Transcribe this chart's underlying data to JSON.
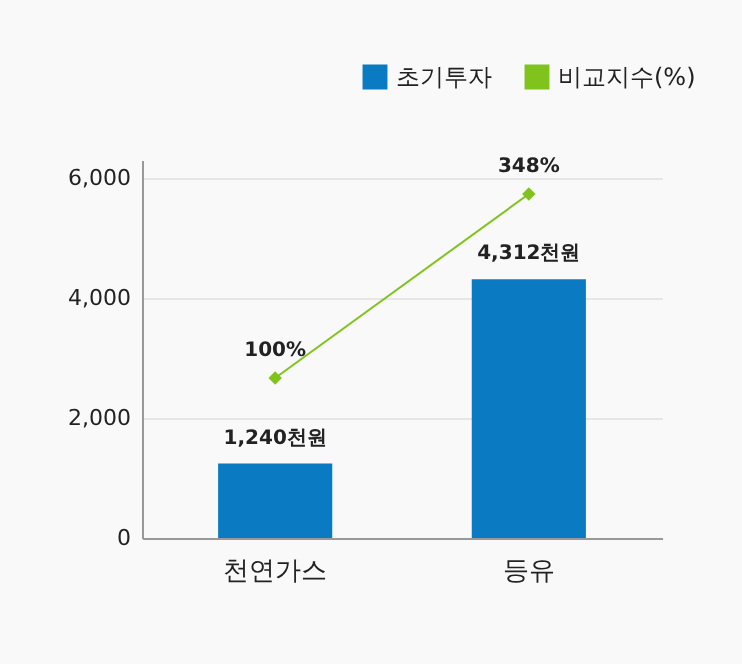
{
  "chart_data": {
    "type": "bar",
    "categories": [
      "천연가스",
      "등유"
    ],
    "series": [
      {
        "name": "초기투자",
        "color": "#0a7bc2",
        "values": [
          1240,
          4312
        ],
        "value_labels": [
          "1,240천원",
          "4,312천원"
        ]
      },
      {
        "name": "비교지수(%)",
        "type": "line",
        "axis": "y2",
        "color": "#7fc31c",
        "values": [
          100,
          348
        ],
        "value_labels": [
          "100%",
          "348%"
        ]
      }
    ],
    "ylim": [
      0,
      6300
    ],
    "yticks": [
      0,
      {
        "value": 2000,
        "label": "2,000"
      },
      {
        "value": 4000,
        "label": "4,000"
      },
      {
        "value": 6000,
        "label": "6,000"
      }
    ],
    "grid": "y",
    "legend": "top right",
    "marker": "diamond"
  }
}
